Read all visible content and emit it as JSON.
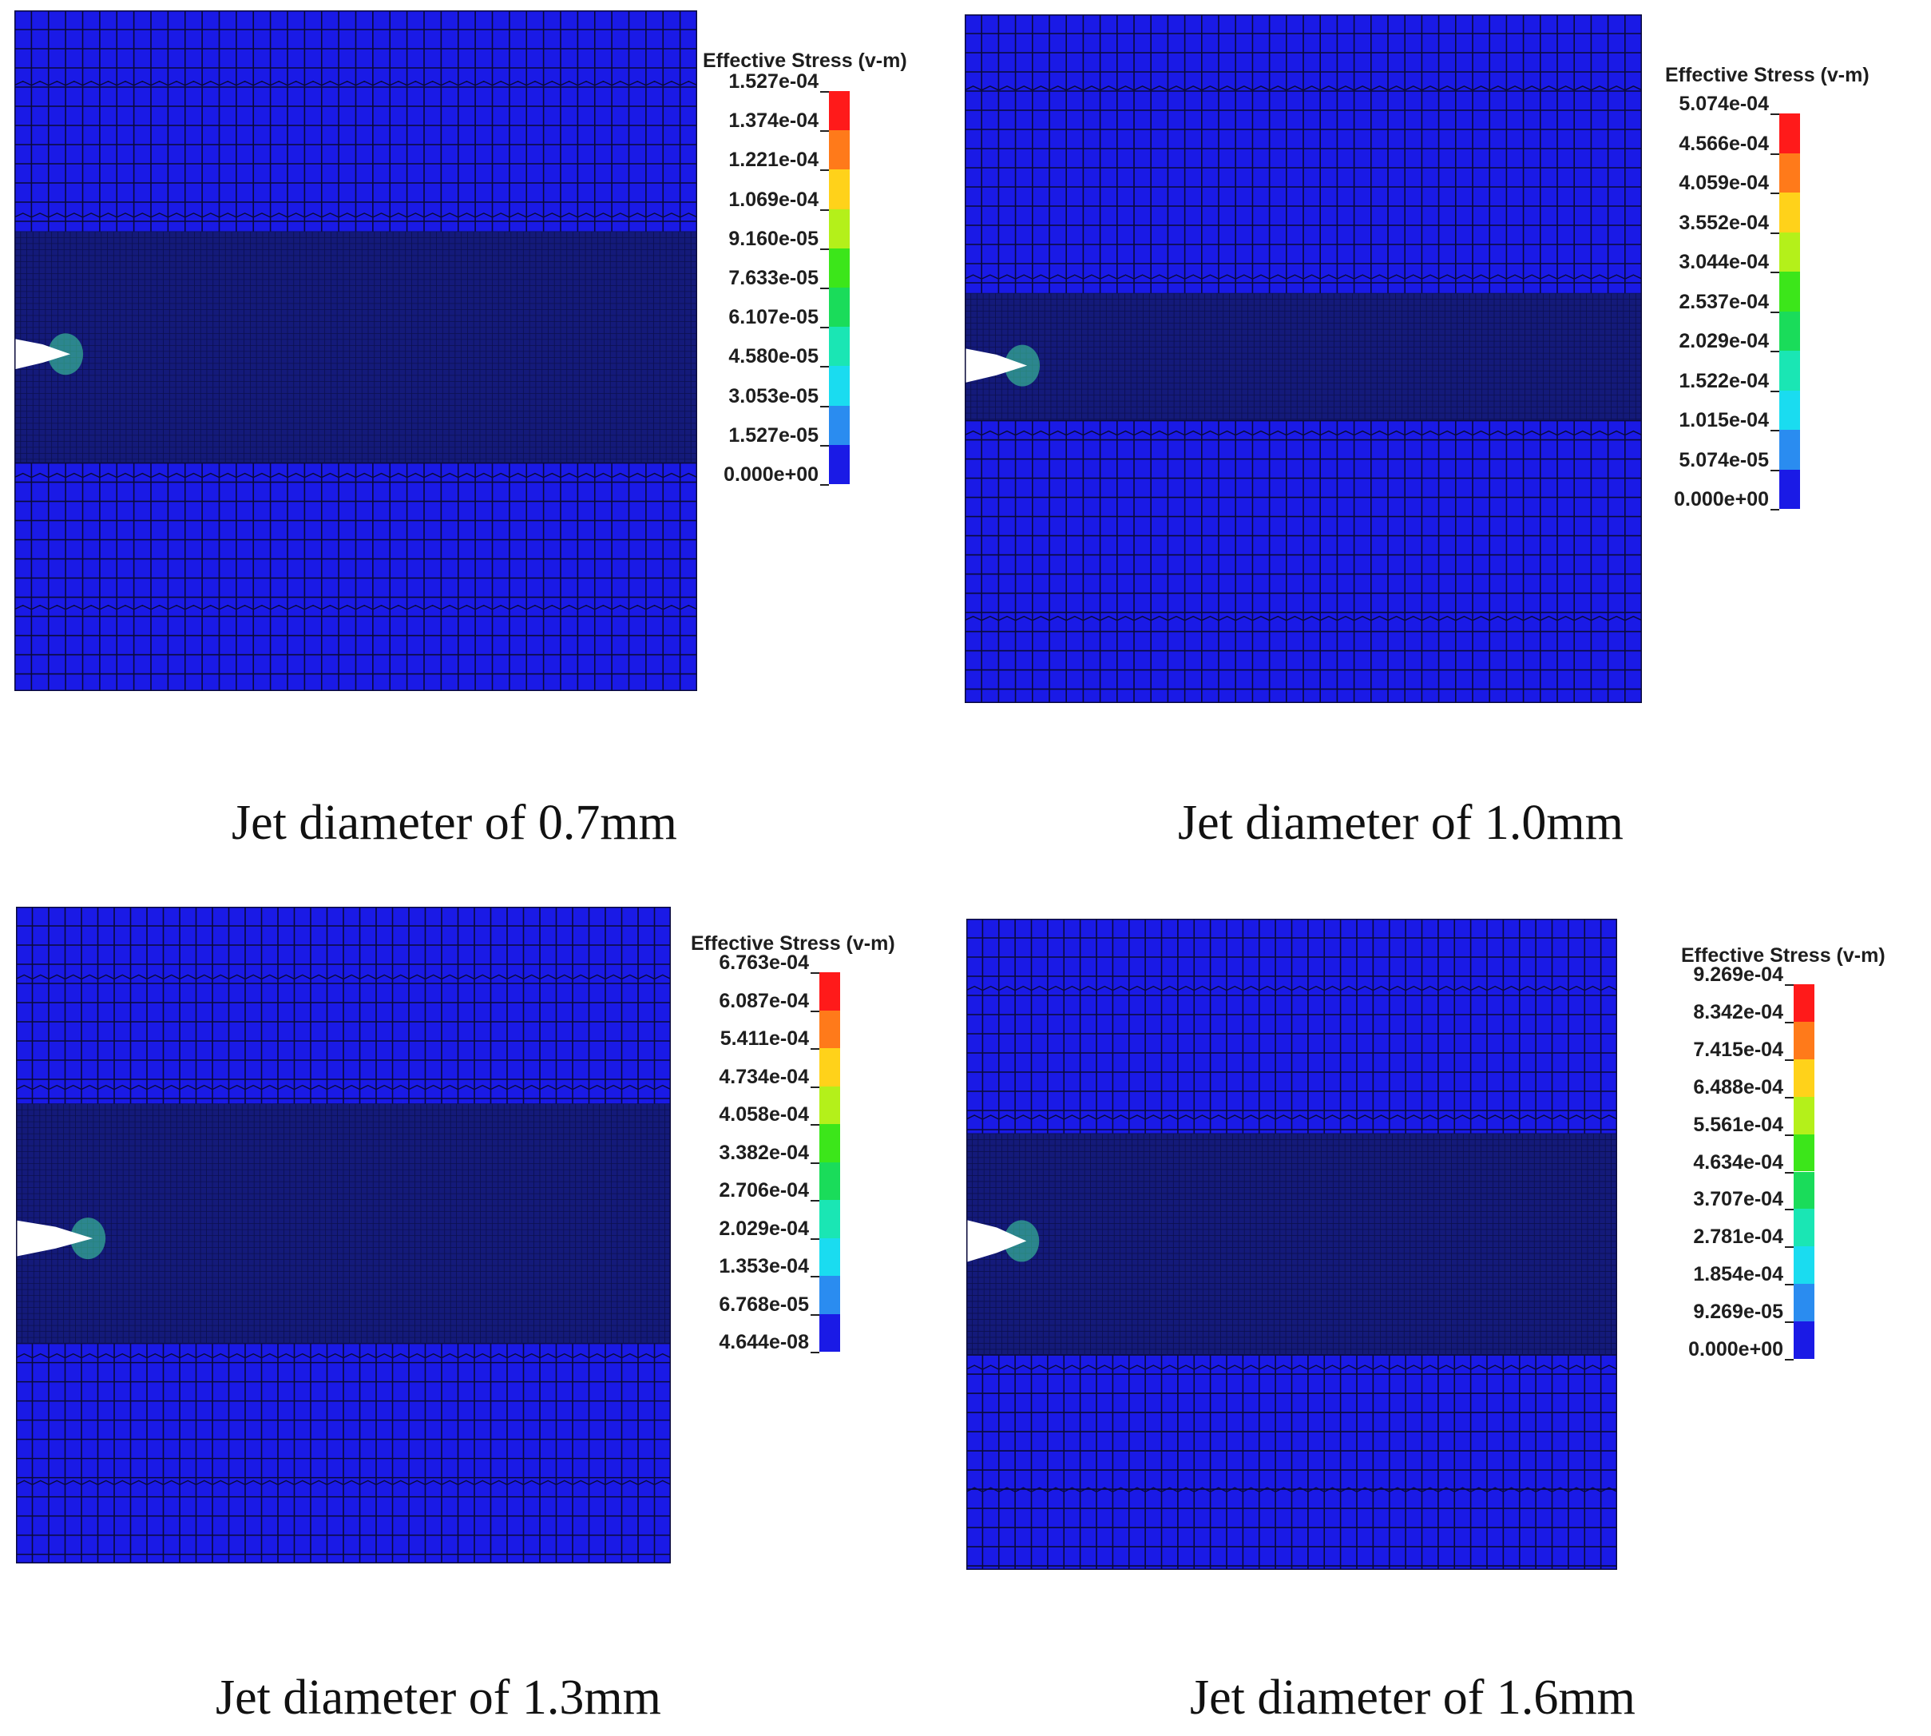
{
  "figure": {
    "panels": [
      {
        "id": "panel-0-7mm",
        "caption": "Jet diameter of 0.7mm",
        "legend": {
          "title": "Effective Stress (v-m)",
          "ticks": [
            "1.527e-04",
            "1.374e-04",
            "1.221e-04",
            "1.069e-04",
            "9.160e-05",
            "7.633e-05",
            "6.107e-05",
            "4.580e-05",
            "3.053e-05",
            "1.527e-05",
            "0.000e+00"
          ]
        }
      },
      {
        "id": "panel-1-0mm",
        "caption": "Jet diameter of 1.0mm",
        "legend": {
          "title": "Effective Stress (v-m)",
          "ticks": [
            "5.074e-04",
            "4.566e-04",
            "4.059e-04",
            "3.552e-04",
            "3.044e-04",
            "2.537e-04",
            "2.029e-04",
            "1.522e-04",
            "1.015e-04",
            "5.074e-05",
            "0.000e+00"
          ]
        }
      },
      {
        "id": "panel-1-3mm",
        "caption": "Jet diameter of 1.3mm",
        "legend": {
          "title": "Effective Stress (v-m)",
          "ticks": [
            "6.763e-04",
            "6.087e-04",
            "5.411e-04",
            "4.734e-04",
            "4.058e-04",
            "3.382e-04",
            "2.706e-04",
            "2.029e-04",
            "1.353e-04",
            "6.768e-05",
            "4.644e-08"
          ]
        }
      },
      {
        "id": "panel-1-6mm",
        "caption": "Jet diameter of 1.6mm",
        "legend": {
          "title": "Effective Stress (v-m)",
          "ticks": [
            "9.269e-04",
            "8.342e-04",
            "7.415e-04",
            "6.488e-04",
            "5.561e-04",
            "4.634e-04",
            "3.707e-04",
            "2.781e-04",
            "1.854e-04",
            "9.269e-05",
            "0.000e+00"
          ]
        }
      }
    ],
    "colors": {
      "mesh_fill": "#1a1ae6",
      "mesh_line": "#0a0a3a",
      "dense_band": "#141a7a",
      "crack": "#ffffff",
      "crack_tip": "#40e0a0",
      "colorbar": [
        "#ff1a1a",
        "#ff7a1a",
        "#ffd21a",
        "#b4f01a",
        "#3ce61a",
        "#1adc5a",
        "#1ae6b4",
        "#1adcf0",
        "#2a8cf0",
        "#1a1ae6"
      ]
    },
    "colorbar_segments": 10
  }
}
